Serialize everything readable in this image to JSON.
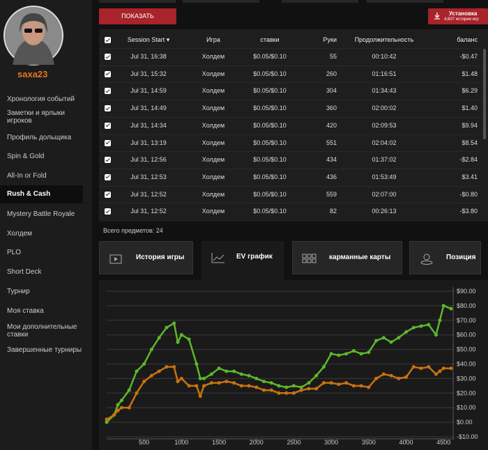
{
  "sidebar": {
    "username": "saxa23",
    "menu": [
      "Хронология событий",
      "Заметки и ярлыки игроков",
      "Профиль дольщика",
      "Spin & Gold",
      "All-In or Fold",
      "Rush & Cash",
      "Mystery Battle Royale",
      "Холдем",
      "PLO",
      "Short Deck",
      "Турнир",
      "Моя ставка",
      "Мои дополнительные ставки",
      "Завершенные турниры"
    ]
  },
  "toolbar": {
    "show_button": "ПОКАЗАТЬ",
    "install_button": "Установка",
    "install_subtitle": "4,607 истории игр"
  },
  "table": {
    "columns": [
      "Session Start",
      "Игра",
      "ставки",
      "Руки",
      "Продолжительность",
      "баланс"
    ],
    "rows": [
      [
        "Jul 31, 16:38",
        "Холдем",
        "$0.05/$0.10",
        "55",
        "00:10:42",
        "-$0.47"
      ],
      [
        "Jul 31, 15:32",
        "Холдем",
        "$0.05/$0.10",
        "260",
        "01:16:51",
        "$1.48"
      ],
      [
        "Jul 31, 14:59",
        "Холдем",
        "$0.05/$0.10",
        "304",
        "01:34:43",
        "$6.29"
      ],
      [
        "Jul 31, 14:49",
        "Холдем",
        "$0.05/$0.10",
        "360",
        "02:00:02",
        "$1.40"
      ],
      [
        "Jul 31, 14:34",
        "Холдем",
        "$0.05/$0.10",
        "420",
        "02:09:53",
        "$9.94"
      ],
      [
        "Jul 31, 13:19",
        "Холдем",
        "$0.05/$0.10",
        "551",
        "02:04:02",
        "$8.54"
      ],
      [
        "Jul 31, 12:56",
        "Холдем",
        "$0.05/$0.10",
        "434",
        "01:37:02",
        "-$2.84"
      ],
      [
        "Jul 31, 12:53",
        "Холдем",
        "$0.05/$0.10",
        "436",
        "01:53:49",
        "$3.41"
      ],
      [
        "Jul 31, 12:52",
        "Холдем",
        "$0.05/$0.10",
        "559",
        "02:07:00",
        "-$0.80"
      ],
      [
        "Jul 31, 12:52",
        "Холдем",
        "$0.05/$0.10",
        "82",
        "00:26:13",
        "-$3.80"
      ]
    ],
    "footer": "Всего предметов: 24"
  },
  "tabs": [
    "История игры",
    "EV график",
    "карманные карты",
    "Позиция"
  ],
  "chart_data": {
    "type": "line",
    "x": [
      0,
      100,
      150,
      200,
      300,
      400,
      500,
      600,
      700,
      800,
      900,
      950,
      1000,
      1100,
      1200,
      1250,
      1300,
      1400,
      1500,
      1600,
      1700,
      1800,
      1900,
      2000,
      2100,
      2200,
      2300,
      2400,
      2500,
      2600,
      2700,
      2800,
      2900,
      3000,
      3100,
      3200,
      3300,
      3400,
      3500,
      3600,
      3700,
      3800,
      3900,
      4000,
      4100,
      4200,
      4300,
      4400,
      4450,
      4500,
      4600
    ],
    "series": [
      {
        "color": "#5cb82a",
        "values": [
          0,
          5,
          12,
          15,
          22,
          35,
          40,
          50,
          58,
          65,
          68,
          55,
          60,
          57,
          40,
          30,
          30,
          33,
          37,
          35,
          35,
          33,
          32,
          30,
          28,
          27,
          25,
          24,
          25,
          24,
          27,
          32,
          38,
          47,
          46,
          47,
          49,
          47,
          48,
          56,
          58,
          55,
          58,
          62,
          65,
          66,
          67,
          60,
          70,
          80,
          78
        ]
      },
      {
        "color": "#c8730f",
        "values": [
          2,
          5,
          8,
          10,
          10,
          20,
          28,
          32,
          35,
          38,
          38,
          28,
          30,
          25,
          25,
          18,
          25,
          27,
          27,
          28,
          27,
          25,
          25,
          24,
          22,
          22,
          20,
          20,
          20,
          22,
          23,
          23,
          27,
          27,
          26,
          27,
          25,
          25,
          24,
          30,
          33,
          32,
          30,
          31,
          38,
          37,
          38,
          33,
          35,
          37,
          37
        ]
      }
    ],
    "xlim": [
      0,
      4600
    ],
    "ylim": [
      -10,
      90
    ],
    "xticks": [
      500,
      1000,
      1500,
      2000,
      2500,
      3000,
      3500,
      4000,
      4500
    ],
    "yticks": [
      {
        "value": -10,
        "label": "-$10.00"
      },
      {
        "value": 0,
        "label": "$0.00"
      },
      {
        "value": 10,
        "label": "$10.00"
      },
      {
        "value": 20,
        "label": "$20.00"
      },
      {
        "value": 30,
        "label": "$30.00"
      },
      {
        "value": 40,
        "label": "$40.00"
      },
      {
        "value": 50,
        "label": "$50.00"
      },
      {
        "value": 60,
        "label": "$60.00"
      },
      {
        "value": 70,
        "label": "$70.00"
      },
      {
        "value": 80,
        "label": "$80.00"
      },
      {
        "value": 90,
        "label": "$90.00"
      }
    ],
    "grid": true
  }
}
